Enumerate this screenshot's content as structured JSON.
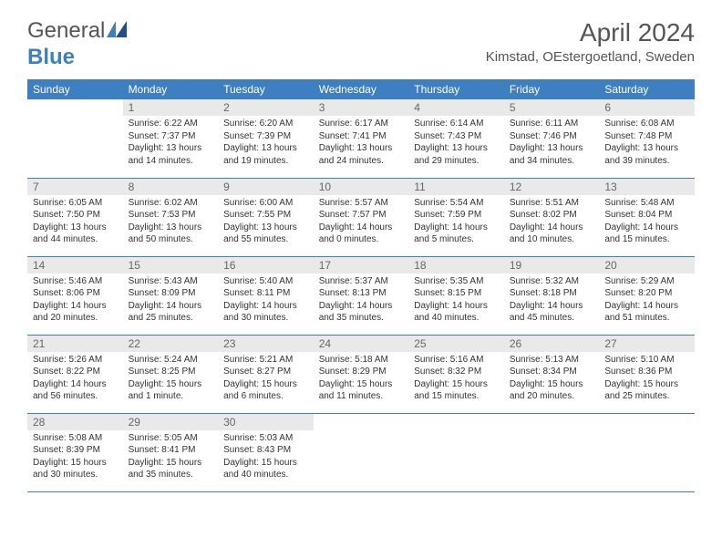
{
  "logo": {
    "general": "General",
    "blue": "Blue"
  },
  "title": "April 2024",
  "location": "Kimstad, OEstergoetland, Sweden",
  "columns": [
    "Sunday",
    "Monday",
    "Tuesday",
    "Wednesday",
    "Thursday",
    "Friday",
    "Saturday"
  ],
  "colors": {
    "header_bg": "#3e7fc1",
    "header_text": "#ffffff",
    "daynum_bg": "#e9e9e9",
    "border": "#3e7fc1"
  },
  "weeks": [
    [
      {
        "n": "",
        "sr": "",
        "ss": "",
        "dl": ""
      },
      {
        "n": "1",
        "sr": "Sunrise: 6:22 AM",
        "ss": "Sunset: 7:37 PM",
        "dl": "Daylight: 13 hours and 14 minutes."
      },
      {
        "n": "2",
        "sr": "Sunrise: 6:20 AM",
        "ss": "Sunset: 7:39 PM",
        "dl": "Daylight: 13 hours and 19 minutes."
      },
      {
        "n": "3",
        "sr": "Sunrise: 6:17 AM",
        "ss": "Sunset: 7:41 PM",
        "dl": "Daylight: 13 hours and 24 minutes."
      },
      {
        "n": "4",
        "sr": "Sunrise: 6:14 AM",
        "ss": "Sunset: 7:43 PM",
        "dl": "Daylight: 13 hours and 29 minutes."
      },
      {
        "n": "5",
        "sr": "Sunrise: 6:11 AM",
        "ss": "Sunset: 7:46 PM",
        "dl": "Daylight: 13 hours and 34 minutes."
      },
      {
        "n": "6",
        "sr": "Sunrise: 6:08 AM",
        "ss": "Sunset: 7:48 PM",
        "dl": "Daylight: 13 hours and 39 minutes."
      }
    ],
    [
      {
        "n": "7",
        "sr": "Sunrise: 6:05 AM",
        "ss": "Sunset: 7:50 PM",
        "dl": "Daylight: 13 hours and 44 minutes."
      },
      {
        "n": "8",
        "sr": "Sunrise: 6:02 AM",
        "ss": "Sunset: 7:53 PM",
        "dl": "Daylight: 13 hours and 50 minutes."
      },
      {
        "n": "9",
        "sr": "Sunrise: 6:00 AM",
        "ss": "Sunset: 7:55 PM",
        "dl": "Daylight: 13 hours and 55 minutes."
      },
      {
        "n": "10",
        "sr": "Sunrise: 5:57 AM",
        "ss": "Sunset: 7:57 PM",
        "dl": "Daylight: 14 hours and 0 minutes."
      },
      {
        "n": "11",
        "sr": "Sunrise: 5:54 AM",
        "ss": "Sunset: 7:59 PM",
        "dl": "Daylight: 14 hours and 5 minutes."
      },
      {
        "n": "12",
        "sr": "Sunrise: 5:51 AM",
        "ss": "Sunset: 8:02 PM",
        "dl": "Daylight: 14 hours and 10 minutes."
      },
      {
        "n": "13",
        "sr": "Sunrise: 5:48 AM",
        "ss": "Sunset: 8:04 PM",
        "dl": "Daylight: 14 hours and 15 minutes."
      }
    ],
    [
      {
        "n": "14",
        "sr": "Sunrise: 5:46 AM",
        "ss": "Sunset: 8:06 PM",
        "dl": "Daylight: 14 hours and 20 minutes."
      },
      {
        "n": "15",
        "sr": "Sunrise: 5:43 AM",
        "ss": "Sunset: 8:09 PM",
        "dl": "Daylight: 14 hours and 25 minutes."
      },
      {
        "n": "16",
        "sr": "Sunrise: 5:40 AM",
        "ss": "Sunset: 8:11 PM",
        "dl": "Daylight: 14 hours and 30 minutes."
      },
      {
        "n": "17",
        "sr": "Sunrise: 5:37 AM",
        "ss": "Sunset: 8:13 PM",
        "dl": "Daylight: 14 hours and 35 minutes."
      },
      {
        "n": "18",
        "sr": "Sunrise: 5:35 AM",
        "ss": "Sunset: 8:15 PM",
        "dl": "Daylight: 14 hours and 40 minutes."
      },
      {
        "n": "19",
        "sr": "Sunrise: 5:32 AM",
        "ss": "Sunset: 8:18 PM",
        "dl": "Daylight: 14 hours and 45 minutes."
      },
      {
        "n": "20",
        "sr": "Sunrise: 5:29 AM",
        "ss": "Sunset: 8:20 PM",
        "dl": "Daylight: 14 hours and 51 minutes."
      }
    ],
    [
      {
        "n": "21",
        "sr": "Sunrise: 5:26 AM",
        "ss": "Sunset: 8:22 PM",
        "dl": "Daylight: 14 hours and 56 minutes."
      },
      {
        "n": "22",
        "sr": "Sunrise: 5:24 AM",
        "ss": "Sunset: 8:25 PM",
        "dl": "Daylight: 15 hours and 1 minute."
      },
      {
        "n": "23",
        "sr": "Sunrise: 5:21 AM",
        "ss": "Sunset: 8:27 PM",
        "dl": "Daylight: 15 hours and 6 minutes."
      },
      {
        "n": "24",
        "sr": "Sunrise: 5:18 AM",
        "ss": "Sunset: 8:29 PM",
        "dl": "Daylight: 15 hours and 11 minutes."
      },
      {
        "n": "25",
        "sr": "Sunrise: 5:16 AM",
        "ss": "Sunset: 8:32 PM",
        "dl": "Daylight: 15 hours and 15 minutes."
      },
      {
        "n": "26",
        "sr": "Sunrise: 5:13 AM",
        "ss": "Sunset: 8:34 PM",
        "dl": "Daylight: 15 hours and 20 minutes."
      },
      {
        "n": "27",
        "sr": "Sunrise: 5:10 AM",
        "ss": "Sunset: 8:36 PM",
        "dl": "Daylight: 15 hours and 25 minutes."
      }
    ],
    [
      {
        "n": "28",
        "sr": "Sunrise: 5:08 AM",
        "ss": "Sunset: 8:39 PM",
        "dl": "Daylight: 15 hours and 30 minutes."
      },
      {
        "n": "29",
        "sr": "Sunrise: 5:05 AM",
        "ss": "Sunset: 8:41 PM",
        "dl": "Daylight: 15 hours and 35 minutes."
      },
      {
        "n": "30",
        "sr": "Sunrise: 5:03 AM",
        "ss": "Sunset: 8:43 PM",
        "dl": "Daylight: 15 hours and 40 minutes."
      },
      {
        "n": "",
        "sr": "",
        "ss": "",
        "dl": ""
      },
      {
        "n": "",
        "sr": "",
        "ss": "",
        "dl": ""
      },
      {
        "n": "",
        "sr": "",
        "ss": "",
        "dl": ""
      },
      {
        "n": "",
        "sr": "",
        "ss": "",
        "dl": ""
      }
    ]
  ]
}
